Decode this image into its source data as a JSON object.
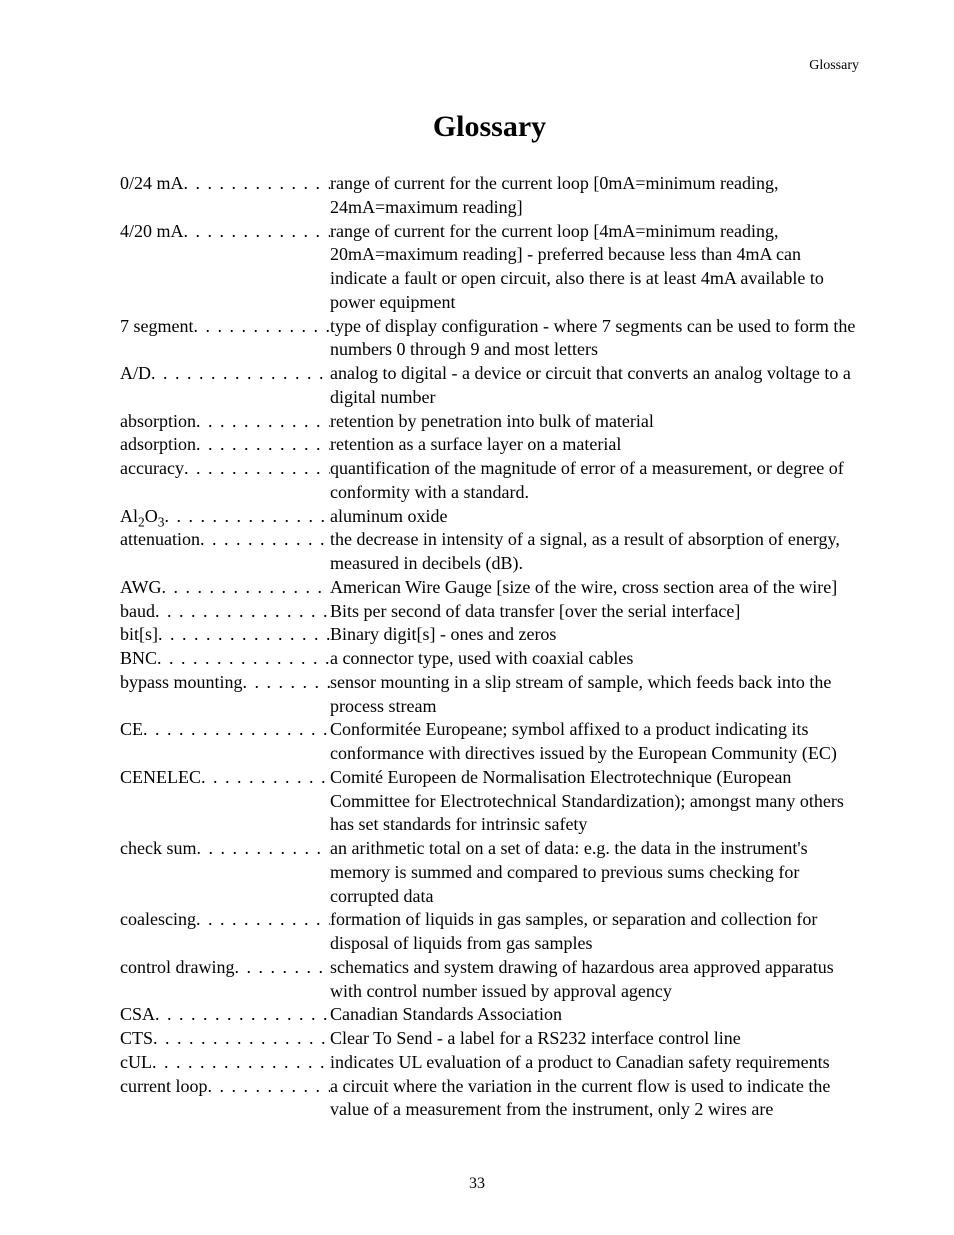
{
  "header": {
    "right": "Glossary"
  },
  "title": "Glossary",
  "page_number": "33",
  "entries": [
    {
      "term": "0/24 mA ",
      "definition": "range of current for the current loop [0mA=minimum reading, 24mA=maximum reading]"
    },
    {
      "term": "4/20 mA ",
      "definition": "range of current for the current loop [4mA=minimum reading, 20mA=maximum reading] - preferred because less than 4mA can indicate a fault or open circuit, also there is at least 4mA available to power equipment"
    },
    {
      "term": "7 segment ",
      "definition": "type of display configuration - where 7 segments can be used to form the numbers 0 through 9 and most letters"
    },
    {
      "term": "A/D ",
      "definition": "analog to digital - a device or circuit that converts an analog voltage to a digital number"
    },
    {
      "term": "absorption ",
      "definition": "retention by penetration into bulk of material"
    },
    {
      "term": "adsorption ",
      "definition": "retention as a surface layer on a material"
    },
    {
      "term": "accuracy ",
      "definition": "quantification of the magnitude of error of a measurement, or degree of conformity with a standard."
    },
    {
      "term_html": "Al<sub>2</sub>O<sub>3</sub> ",
      "term": "Al2O3 ",
      "definition": "aluminum oxide"
    },
    {
      "term": "attenuation",
      "definition": "the decrease in intensity of a signal, as a result of absorption of energy, measured in decibels (dB)."
    },
    {
      "term": "AWG ",
      "definition": "American Wire Gauge [size of the wire, cross section area of the wire]"
    },
    {
      "term": "baud",
      "definition": "Bits per second of data transfer [over the serial interface]"
    },
    {
      "term": "bit[s] ",
      "definition": "Binary digit[s] - ones and zeros"
    },
    {
      "term": "BNC ",
      "definition": "a connector type, used with coaxial cables"
    },
    {
      "term": "bypass mounting ",
      "definition": "sensor mounting in a slip stream of sample, which feeds back into the process stream"
    },
    {
      "term": "CE ",
      "definition": "Conformitée Europeane; symbol affixed to a product indicating its conformance with directives issued by the European Community (EC)"
    },
    {
      "term": "CENELEC ",
      "definition": "Comité Europeen de Normalisation Electrotechnique (European Committee for Electrotechnical Standardization); amongst many others has set standards for intrinsic safety"
    },
    {
      "term": "check sum ",
      "definition": "an arithmetic total on a set of data: e.g. the data in the instrument's memory is summed and compared to previous sums checking for corrupted data"
    },
    {
      "term": "coalescing ",
      "definition": "formation of liquids in gas samples, or separation and collection for disposal of liquids from gas samples"
    },
    {
      "term": "control drawing ",
      "definition": "schematics and system drawing of hazardous area approved apparatus with control number issued by approval agency"
    },
    {
      "term": "CSA",
      "definition": "Canadian Standards Association"
    },
    {
      "term": "CTS ",
      "definition": "Clear To Send - a label for a RS232 interface control line"
    },
    {
      "term": "cUL ",
      "definition": "indicates UL evaluation of a product to Canadian safety requirements"
    },
    {
      "term": "current loop ",
      "definition": "a circuit where the variation in the current flow is used to indicate the value of a measurement from the instrument, only 2 wires are"
    }
  ]
}
